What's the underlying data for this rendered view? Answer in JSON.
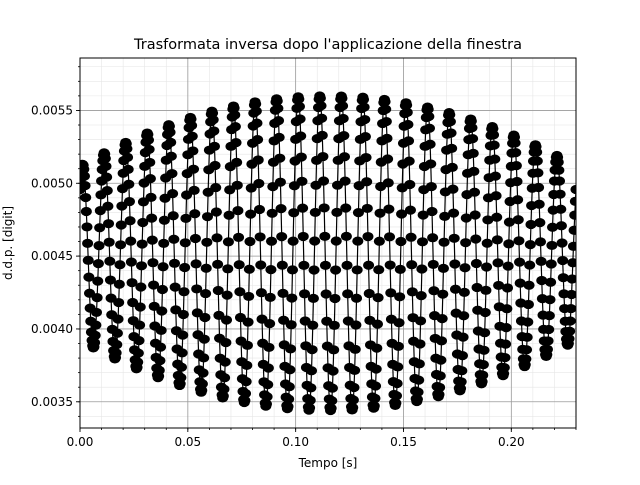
{
  "chart_data": {
    "type": "scatter",
    "title": "Trasformata inversa dopo l'applicazione della finestra",
    "xlabel": "Tempo [s]",
    "ylabel": "d.d.p. [digit]",
    "xlim": [
      0.0,
      0.23
    ],
    "ylim": [
      0.00332,
      0.00586
    ],
    "xticks": [
      0.0,
      0.05,
      0.1,
      0.15,
      0.2
    ],
    "xtick_labels": [
      "0.00",
      "0.05",
      "0.10",
      "0.15",
      "0.20"
    ],
    "yticks": [
      0.0035,
      0.004,
      0.0045,
      0.005,
      0.0055
    ],
    "ytick_labels": [
      "0.0035",
      "0.0040",
      "0.0045",
      "0.0050",
      "0.0055"
    ],
    "grid": true,
    "minor_grid": true,
    "marker": "circle",
    "marker_color": "#000000",
    "line_color": "#000000",
    "signal": {
      "description_units": "volts-like digit values",
      "period_s": 0.01,
      "offset": 0.00452,
      "amplitude_at_edges": 0.0006,
      "amplitude_at_center": 0.00108,
      "samples_per_period": 34,
      "phase_offset_s": 0.0012
    }
  }
}
